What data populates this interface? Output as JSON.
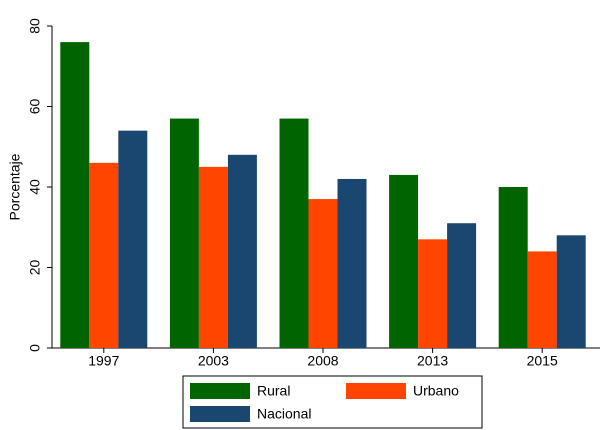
{
  "chart_data": {
    "type": "bar",
    "y_label": "Porcentaje",
    "categories": [
      "1997",
      "2003",
      "2008",
      "2013",
      "2015"
    ],
    "series": [
      {
        "name": "Rural",
        "color": "#006400",
        "values": [
          76,
          57,
          57,
          43,
          40
        ]
      },
      {
        "name": "Urbano",
        "color": "#ff4500",
        "values": [
          46,
          45,
          37,
          27,
          24
        ]
      },
      {
        "name": "Nacional",
        "color": "#1a476f",
        "values": [
          54,
          48,
          42,
          31,
          28
        ]
      }
    ],
    "ylim": [
      0,
      80
    ],
    "yticks": [
      0,
      20,
      40,
      60,
      80
    ],
    "grid": false
  }
}
